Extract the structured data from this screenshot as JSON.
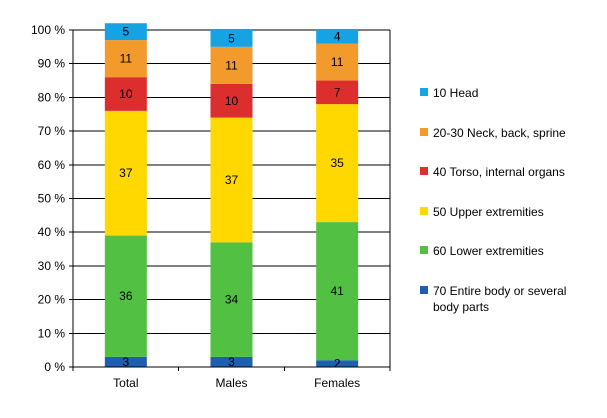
{
  "chart_data": {
    "type": "bar",
    "stacked": true,
    "title": "",
    "xlabel": "",
    "ylabel": "",
    "ylim": [
      0,
      100
    ],
    "y_tick_values": [
      0,
      10,
      20,
      30,
      40,
      50,
      60,
      70,
      80,
      90,
      100
    ],
    "y_tick_labels": [
      "0 %",
      "10 %",
      "20 %",
      "30 %",
      "40 %",
      "50 %",
      "60 %",
      "70 %",
      "80 %",
      "90 %",
      "100 %"
    ],
    "grid": true,
    "legend_position": "right",
    "categories": [
      "Total",
      "Males",
      "Females"
    ],
    "series": [
      {
        "name": "70 Entire body or several body parts",
        "legend_lines": [
          "70 Entire body or several",
          "body parts"
        ],
        "color": "#1f5fb0",
        "values": [
          3,
          3,
          2
        ]
      },
      {
        "name": "60 Lower extremities",
        "color": "#52c042",
        "values": [
          36,
          34,
          41
        ]
      },
      {
        "name": "50 Upper extremities",
        "color": "#ffd800",
        "values": [
          37,
          37,
          35
        ]
      },
      {
        "name": "40 Torso, internal organs",
        "color": "#dd2e2e",
        "values": [
          10,
          10,
          7
        ]
      },
      {
        "name": "20-30 Neck, back, sprine",
        "color": "#f39a2c",
        "values": [
          11,
          11,
          11
        ]
      },
      {
        "name": "10 Head",
        "color": "#16a3e4",
        "values": [
          5,
          5,
          4
        ]
      }
    ],
    "legend_order": [
      5,
      4,
      3,
      2,
      1,
      0
    ]
  }
}
